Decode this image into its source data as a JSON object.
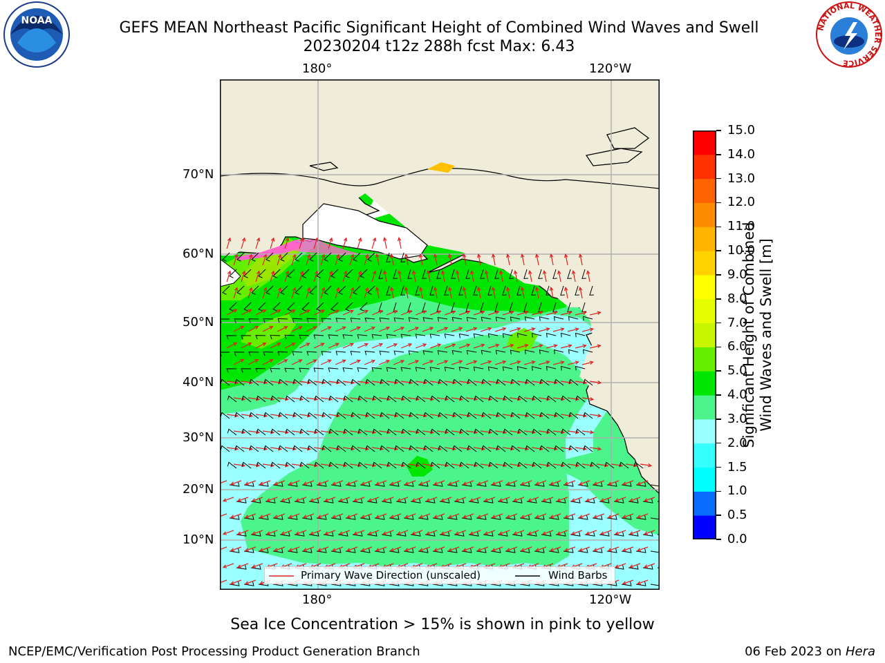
{
  "header": {
    "title_line1": "GEFS MEAN Northeast Pacific Significant Height of Combined Wind Waves and Swell",
    "title_line2": "20230204 t12z 288h fcst   Max: 6.43"
  },
  "logos": {
    "noaa_text": "NOAA",
    "nws_text": "NATIONAL WEATHER SERVICE"
  },
  "map": {
    "lon_labels": [
      "180°",
      "120°W"
    ],
    "lat_labels": [
      "70°N",
      "60°N",
      "50°N",
      "40°N",
      "30°N",
      "20°N",
      "10°N"
    ],
    "colors": {
      "land": "#efedd9",
      "grid": "#b0b0b0",
      "arrow": "#e02020",
      "barb": "#000000"
    }
  },
  "legend": {
    "wave_label": "Primary Wave Direction (unscaled)",
    "barb_label": "Wind Barbs"
  },
  "colorbar": {
    "label_line1": "Significant Height of Combined",
    "label_line2": "Wind Waves and Swell [m]",
    "ticks": [
      "0.0",
      "0.5",
      "1.0",
      "1.5",
      "2.0",
      "3.0",
      "4.0",
      "5.0",
      "6.0",
      "7.0",
      "8.0",
      "9.0",
      "10.0",
      "11.0",
      "12.0",
      "13.0",
      "14.0",
      "15.0"
    ],
    "colors": [
      "#0000ff",
      "#0a6cff",
      "#00ffff",
      "#36ffff",
      "#9bffff",
      "#4cf58b",
      "#00e600",
      "#66ee00",
      "#c8f500",
      "#e6ff00",
      "#ffff00",
      "#ffd200",
      "#ffb400",
      "#ff8c00",
      "#ff6400",
      "#ff3200",
      "#ff0000"
    ]
  },
  "note": "Sea Ice Concentration > 15% is shown in pink to yellow",
  "footer": {
    "left": "NCEP/EMC/Verification Post Processing Product Generation Branch",
    "right_date": "06 Feb 2023 on ",
    "right_host": "Hera"
  }
}
